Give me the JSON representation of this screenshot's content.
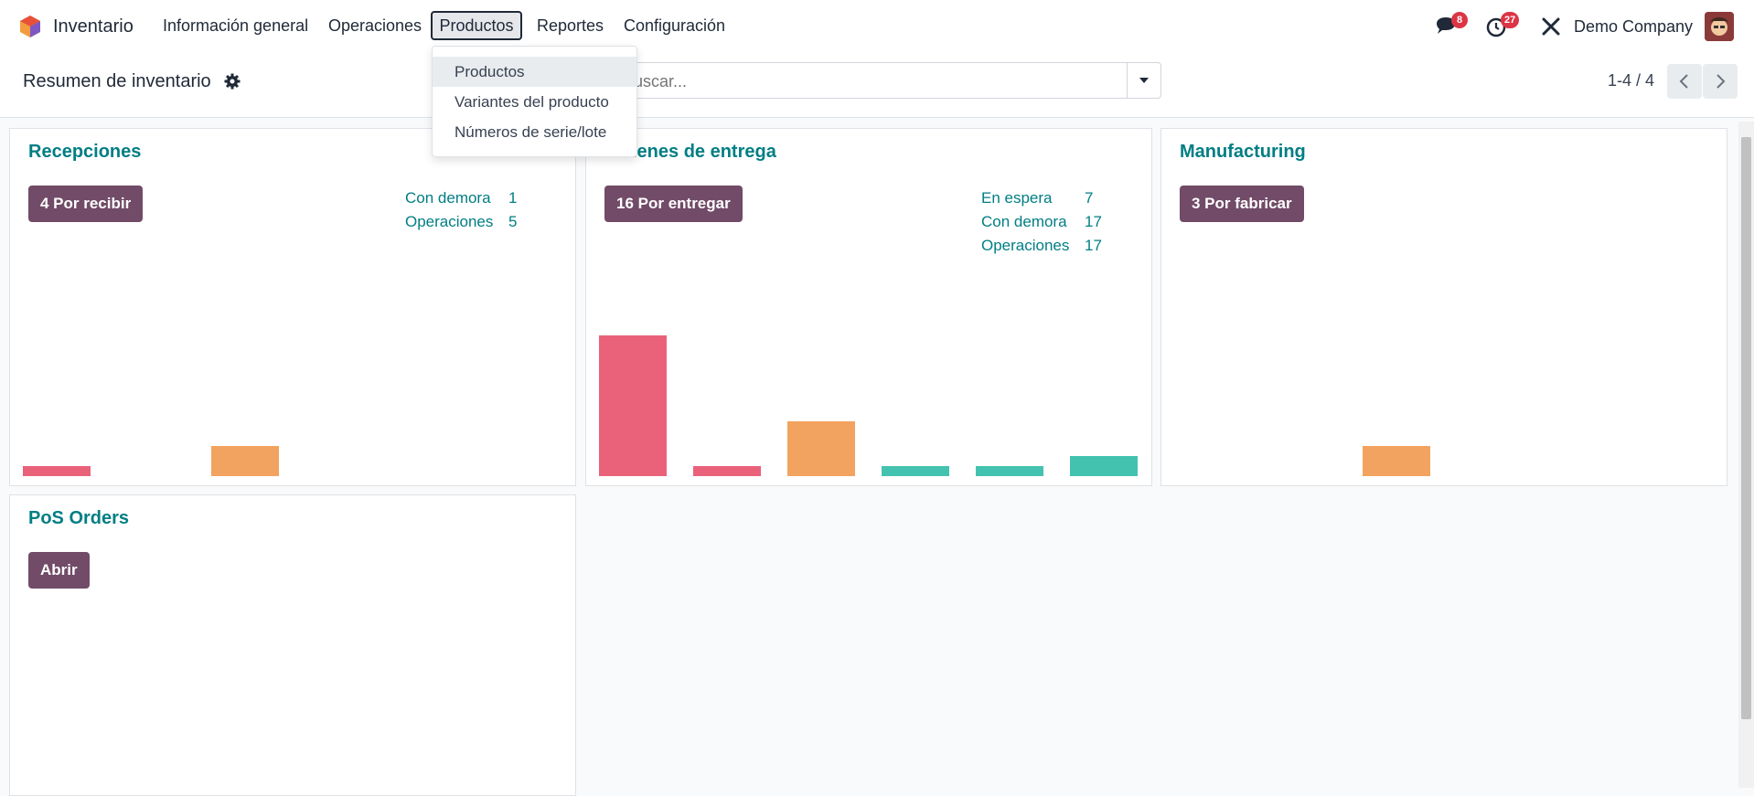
{
  "app": {
    "name": "Inventario",
    "logo_icon": "odoo-logo-icon"
  },
  "menu": {
    "items": [
      "Información general",
      "Operaciones",
      "Productos",
      "Reportes",
      "Configuración"
    ],
    "active": "Productos"
  },
  "systray": {
    "messages_badge": "8",
    "activities_badge": "27",
    "company": "Demo Company",
    "badge_color": "#dc3545"
  },
  "control": {
    "breadcrumb": "Resumen de inventario",
    "search_placeholder": "Buscar...",
    "pager": "1-4 / 4"
  },
  "dropdown": {
    "items": [
      "Productos",
      "Variantes del producto",
      "Números de serie/lote"
    ],
    "highlighted": "Productos"
  },
  "cards": [
    {
      "title": "Recepciones",
      "button": "4 Por recibir",
      "stats": [
        {
          "label": "Con demora",
          "value": "1"
        },
        {
          "label": "Operaciones",
          "value": "5"
        }
      ],
      "bars": [
        {
          "value": 1,
          "color": "#e9627a"
        },
        {
          "value": 0,
          "color": "#e9627a"
        },
        {
          "value": 3,
          "color": "#f2a35f"
        },
        {
          "value": 0,
          "color": "#f2a35f"
        },
        {
          "value": 0,
          "color": "#44c2b0"
        },
        {
          "value": 0,
          "color": "#44c2b0"
        }
      ]
    },
    {
      "title": "Órdenes de entrega",
      "button": "16 Por entregar",
      "stats": [
        {
          "label": "En espera",
          "value": "7"
        },
        {
          "label": "Con demora",
          "value": "17"
        },
        {
          "label": "Operaciones",
          "value": "17"
        }
      ],
      "bars": [
        {
          "value": 14,
          "color": "#e9627a"
        },
        {
          "value": 1,
          "color": "#e9627a"
        },
        {
          "value": 5.5,
          "color": "#f2a35f"
        },
        {
          "value": 1,
          "color": "#44c2b0"
        },
        {
          "value": 1,
          "color": "#44c2b0"
        },
        {
          "value": 2,
          "color": "#44c2b0"
        }
      ]
    },
    {
      "title": "Manufacturing",
      "button": "3 Por fabricar",
      "stats": [],
      "bars": [
        {
          "value": 0,
          "color": "#e9627a"
        },
        {
          "value": 0,
          "color": "#e9627a"
        },
        {
          "value": 3,
          "color": "#f2a35f"
        },
        {
          "value": 0,
          "color": "#f2a35f"
        },
        {
          "value": 0,
          "color": "#44c2b0"
        },
        {
          "value": 0,
          "color": "#44c2b0"
        }
      ]
    },
    {
      "title": "PoS Orders",
      "button": "Abrir",
      "stats": [],
      "bars": []
    }
  ],
  "colors": {
    "brand": "#714b67",
    "title": "#017e84",
    "late": "#e9627a",
    "future": "#f2a35f",
    "done": "#44c2b0"
  }
}
